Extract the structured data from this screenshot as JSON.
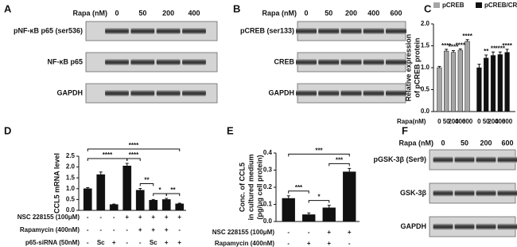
{
  "chart_data": [
    {
      "type": "bar",
      "panel": "C",
      "y_label": [
        "Relative expression",
        "of pCREB protein"
      ],
      "x_label": "Rapa(nM)",
      "categories": [
        "0",
        "50",
        "200",
        "400",
        "600"
      ],
      "series": [
        {
          "name": "pCREB",
          "color": "#a6a6a6",
          "values": [
            1.0,
            1.38,
            1.35,
            1.4,
            1.6
          ],
          "errors": [
            0.03,
            0.04,
            0.04,
            0.03,
            0.04
          ],
          "annotations": [
            null,
            "****",
            "****",
            "****",
            "****"
          ]
        },
        {
          "name": "pCREB/CREB",
          "color": "#111111",
          "values": [
            1.0,
            1.22,
            1.28,
            1.3,
            1.35
          ],
          "errors": [
            0.08,
            0.07,
            0.08,
            0.06,
            0.07
          ],
          "annotations": [
            null,
            "**",
            "**",
            "****",
            "****"
          ]
        }
      ],
      "ylim": [
        0,
        2.0
      ],
      "yticks": [
        {
          "value": 0,
          "label": "0.0"
        },
        {
          "value": 0.5,
          "label": "0.5"
        },
        {
          "value": 1,
          "label": "1.0"
        },
        {
          "value": 1.5,
          "label": "1.5"
        },
        {
          "value": 2,
          "label": "2.0"
        }
      ]
    },
    {
      "type": "bar",
      "panel": "D",
      "y_label": [
        "CCL5 mRNA level"
      ],
      "color": "#111111",
      "values": [
        1.0,
        1.65,
        0.27,
        2.05,
        0.93,
        0.47,
        0.5,
        0.3
      ],
      "errors": [
        0.05,
        0.12,
        0.02,
        0.12,
        0.08,
        0.03,
        0.05,
        0.03
      ],
      "ylim": [
        0,
        2.5
      ],
      "yticks": [
        {
          "value": 0,
          "label": "0.0"
        },
        {
          "value": 0.5,
          "label": "0.5"
        },
        {
          "value": 1,
          "label": "1.0"
        },
        {
          "value": 1.5,
          "label": "1.5"
        },
        {
          "value": 2,
          "label": "2.0"
        },
        {
          "value": 2.5,
          "label": "2.5"
        }
      ],
      "conditions": [
        {
          "name": "NSC 228155 (100μM)",
          "levels": [
            "-",
            "-",
            "-",
            "+",
            "+",
            "+",
            "+",
            "+"
          ]
        },
        {
          "name": "Rapamycin (400nM)",
          "levels": [
            "-",
            "-",
            "-",
            "-",
            "+",
            "+",
            "+",
            "-"
          ]
        },
        {
          "name": "p65-siRNA (50nM)",
          "levels": [
            "-",
            "Sc",
            "+",
            "-",
            "-",
            "Sc",
            "+",
            "+"
          ]
        }
      ],
      "brackets": [
        {
          "from": 0,
          "to": 7,
          "label": "****"
        },
        {
          "from": 0,
          "to": 3,
          "label": "****"
        },
        {
          "from": 3,
          "to": 4,
          "label": "****"
        },
        {
          "from": 4,
          "to": 5,
          "label": "**"
        },
        {
          "from": 5,
          "to": 6,
          "label": "*"
        },
        {
          "from": 6,
          "to": 7,
          "label": "**"
        }
      ]
    },
    {
      "type": "bar",
      "panel": "E",
      "y_label": [
        "Conc. of CCL5",
        "in cultured medium",
        "(pg/μg cell protein)"
      ],
      "color": "#111111",
      "values": [
        0.135,
        0.04,
        0.08,
        0.29
      ],
      "errors": [
        0.015,
        0.01,
        0.015,
        0.02
      ],
      "ylim": [
        0,
        0.4
      ],
      "yticks": [
        {
          "value": 0,
          "label": "0.0"
        },
        0.1,
        0.2,
        0.3,
        0.4
      ],
      "conditions": [
        {
          "name": "NSC 228155 (100μM)",
          "levels": [
            "-",
            "-",
            "+",
            "+"
          ]
        },
        {
          "name": "Rapamycin (400nM)",
          "levels": [
            "-",
            "+",
            "+",
            "-"
          ]
        }
      ],
      "brackets": [
        {
          "from": 0,
          "to": 3,
          "label": "***"
        },
        {
          "from": 0,
          "to": 1,
          "label": "***"
        },
        {
          "from": 1,
          "to": 2,
          "label": "*"
        },
        {
          "from": 2,
          "to": 3,
          "label": "***"
        }
      ]
    }
  ],
  "blots": [
    {
      "panel": "A",
      "treatment": "Rapa (nM)",
      "lanes": [
        "0",
        "50",
        "200",
        "400"
      ],
      "bands": [
        "pNF-κB p65 (ser536)",
        "NF-κB p65",
        "GAPDH"
      ]
    },
    {
      "panel": "B",
      "treatment": "Rapa (nM)",
      "lanes": [
        "0",
        "50",
        "200",
        "400",
        "600"
      ],
      "bands": [
        "pCREB (ser133)",
        "CREB",
        "GAPDH"
      ]
    },
    {
      "panel": "F",
      "treatment": "Rapa (nM)",
      "lanes": [
        "0",
        "50",
        "200",
        "600"
      ],
      "bands": [
        "pGSK-3β (Ser9)",
        "GSK-3β",
        "GAPDH"
      ]
    }
  ]
}
